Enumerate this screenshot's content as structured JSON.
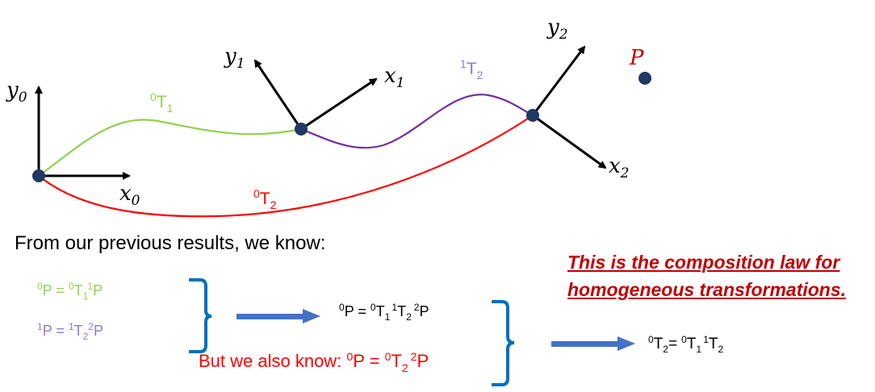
{
  "frames": {
    "frame0": {
      "x_axis": "x",
      "x_sub": "0",
      "y_axis": "y",
      "y_sub": "0"
    },
    "frame1": {
      "x_axis": "x",
      "x_sub": "1",
      "y_axis": "y",
      "y_sub": "1"
    },
    "frame2": {
      "x_axis": "x",
      "x_sub": "2",
      "y_axis": "y",
      "y_sub": "2"
    }
  },
  "point": {
    "label": "P"
  },
  "transforms": {
    "t01": {
      "pre_sup": "0",
      "base": "T",
      "sub": "1"
    },
    "t12": {
      "pre_sup": "1",
      "base": "T",
      "sub": "2"
    },
    "t02": {
      "pre_sup": "0",
      "base": "T",
      "sub": "2"
    }
  },
  "text": {
    "intro": "From our previous results, we know:",
    "note_line1": "This is the composition law for",
    "note_line2": "homogeneous transformations.",
    "also_prefix": "But we also know: ",
    "equals": " = "
  },
  "equations": {
    "eq1": {
      "lhs_sup": "0",
      "lhs": "P",
      "t_sup": "0",
      "t": "T",
      "t_sub": "1",
      "p_sup": "1",
      "p": "P"
    },
    "eq2": {
      "lhs_sup": "1",
      "lhs": "P",
      "t_sup": "1",
      "t": "T",
      "t_sub": "2",
      "p_sup": "2",
      "p": "P"
    },
    "eq3": {
      "lhs_sup": "0",
      "lhs": "P",
      "t1_sup": "0",
      "t1": "T",
      "t1_sub": "1",
      "t2_sup": "1",
      "t2": "T",
      "t2_sub": "2",
      "p_sup": "2",
      "p": "P"
    },
    "eq4": {
      "lhs_sup": "0",
      "lhs": "P",
      "t_sup": "0",
      "t": "T",
      "t_sub": "2",
      "p_sup": "2",
      "p": "P"
    },
    "eq5": {
      "lhs_sup": "0",
      "lhs": "T",
      "lhs_sub": "2",
      "eq": "=",
      "t1_sup": "0",
      "t1": "T",
      "t1_sub": "1",
      "t2_sup": "1",
      "t2": "T",
      "t2_sub": "2"
    }
  },
  "colors": {
    "green": "#92d050",
    "purple": "#7030a0",
    "red": "#ff0000",
    "dark_red": "#c00000",
    "blue_brace": "#0070c0",
    "blue_arrow": "#4472c4",
    "lavender": "#8e7cc3",
    "node": "#1f3864"
  }
}
